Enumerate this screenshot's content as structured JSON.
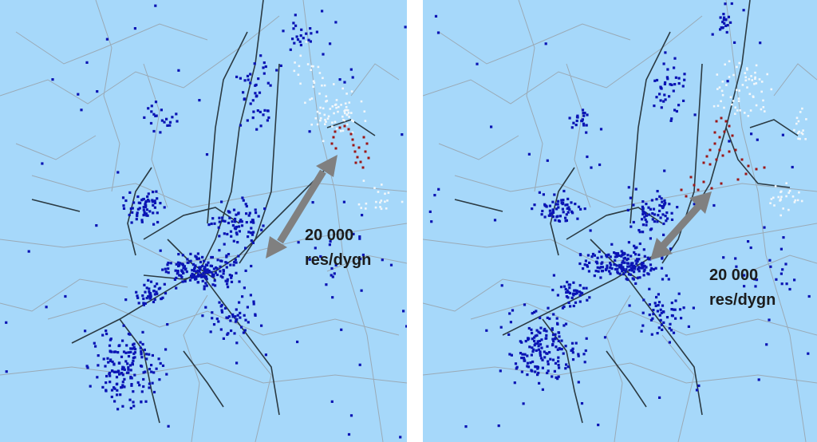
{
  "panels": [
    {
      "id": "before",
      "flow_label": {
        "line1": "20 000",
        "line2": "res/dygn"
      }
    },
    {
      "id": "after",
      "flow_label": {
        "line1": "20 000",
        "line2": "res/dygn"
      }
    }
  ],
  "legend_colors": {
    "background": "#a6d8fa",
    "zone_blue": "#0a14b4",
    "zone_white": "#f2f7fb",
    "zone_red": "#9c1616",
    "main_road": "#2b3a42",
    "minor_road": "#9aaab6",
    "arrow": "#808080"
  },
  "icons": {
    "arrow": "double-headed-arrow-icon"
  }
}
